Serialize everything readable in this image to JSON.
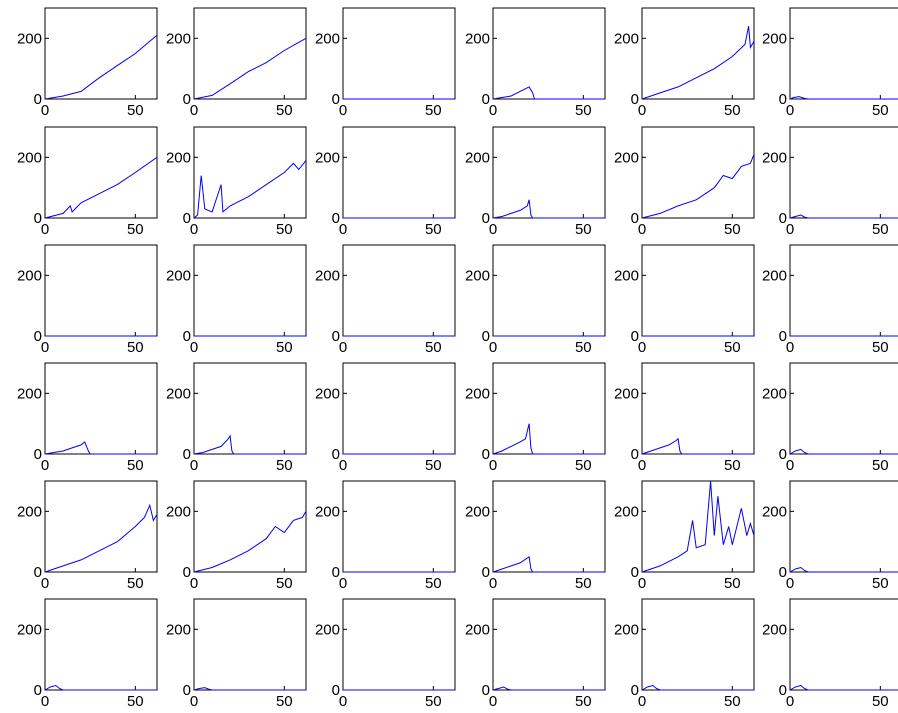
{
  "line_color": "#0000ff",
  "axes_color": "#000000",
  "chart_data": {
    "type": "line",
    "grid": false,
    "rows": 6,
    "cols": 6,
    "xlim": [
      0,
      62
    ],
    "ylim": [
      0,
      300
    ],
    "x_ticks": [
      0,
      50
    ],
    "y_ticks": [
      0,
      200
    ],
    "x_tick_labels": [
      "0",
      "50"
    ],
    "y_tick_labels": [
      "0",
      "200"
    ],
    "panels": [
      {
        "trend": "linear",
        "points": [
          [
            0,
            0
          ],
          [
            10,
            10
          ],
          [
            20,
            25
          ],
          [
            30,
            70
          ],
          [
            40,
            110
          ],
          [
            50,
            150
          ],
          [
            60,
            200
          ],
          [
            62,
            210
          ]
        ]
      },
      {
        "trend": "linear",
        "points": [
          [
            0,
            0
          ],
          [
            10,
            12
          ],
          [
            20,
            50
          ],
          [
            30,
            90
          ],
          [
            40,
            120
          ],
          [
            50,
            160
          ],
          [
            62,
            200
          ]
        ]
      },
      {
        "trend": "zero",
        "points": []
      },
      {
        "trend": "bump",
        "points": [
          [
            0,
            0
          ],
          [
            5,
            5
          ],
          [
            10,
            10
          ],
          [
            15,
            25
          ],
          [
            20,
            40
          ],
          [
            22,
            20
          ],
          [
            23,
            0
          ]
        ]
      },
      {
        "trend": "linear",
        "points": [
          [
            0,
            0
          ],
          [
            10,
            20
          ],
          [
            20,
            40
          ],
          [
            30,
            70
          ],
          [
            40,
            100
          ],
          [
            50,
            140
          ],
          [
            57,
            180
          ],
          [
            59,
            240
          ],
          [
            60,
            170
          ],
          [
            62,
            190
          ]
        ]
      },
      {
        "trend": "small",
        "points": [
          [
            0,
            0
          ],
          [
            2,
            5
          ],
          [
            5,
            8
          ],
          [
            8,
            2
          ],
          [
            10,
            0
          ]
        ]
      },
      {
        "trend": "linear",
        "points": [
          [
            0,
            0
          ],
          [
            10,
            15
          ],
          [
            14,
            40
          ],
          [
            15,
            20
          ],
          [
            20,
            50
          ],
          [
            30,
            80
          ],
          [
            40,
            110
          ],
          [
            50,
            150
          ],
          [
            62,
            200
          ]
        ]
      },
      {
        "trend": "spiky",
        "points": [
          [
            0,
            0
          ],
          [
            2,
            10
          ],
          [
            4,
            140
          ],
          [
            6,
            30
          ],
          [
            10,
            20
          ],
          [
            15,
            110
          ],
          [
            16,
            20
          ],
          [
            20,
            40
          ],
          [
            30,
            70
          ],
          [
            40,
            110
          ],
          [
            50,
            150
          ],
          [
            55,
            180
          ],
          [
            58,
            160
          ],
          [
            62,
            190
          ]
        ]
      },
      {
        "trend": "zero",
        "points": []
      },
      {
        "trend": "bump",
        "points": [
          [
            0,
            0
          ],
          [
            5,
            5
          ],
          [
            10,
            15
          ],
          [
            15,
            25
          ],
          [
            19,
            40
          ],
          [
            20,
            60
          ],
          [
            21,
            10
          ],
          [
            22,
            0
          ]
        ]
      },
      {
        "trend": "linear",
        "points": [
          [
            0,
            0
          ],
          [
            10,
            15
          ],
          [
            20,
            40
          ],
          [
            30,
            60
          ],
          [
            40,
            100
          ],
          [
            45,
            140
          ],
          [
            50,
            130
          ],
          [
            55,
            170
          ],
          [
            60,
            180
          ],
          [
            62,
            210
          ]
        ]
      },
      {
        "trend": "small",
        "points": [
          [
            0,
            0
          ],
          [
            3,
            5
          ],
          [
            6,
            10
          ],
          [
            8,
            3
          ],
          [
            10,
            0
          ]
        ]
      },
      {
        "trend": "zero",
        "points": []
      },
      {
        "trend": "zero",
        "points": []
      },
      {
        "trend": "zero",
        "points": []
      },
      {
        "trend": "zero",
        "points": []
      },
      {
        "trend": "zero",
        "points": []
      },
      {
        "trend": "zero",
        "points": []
      },
      {
        "trend": "bump",
        "points": [
          [
            0,
            0
          ],
          [
            5,
            5
          ],
          [
            10,
            10
          ],
          [
            15,
            20
          ],
          [
            20,
            30
          ],
          [
            22,
            40
          ],
          [
            24,
            10
          ],
          [
            25,
            0
          ]
        ]
      },
      {
        "trend": "bump",
        "points": [
          [
            0,
            0
          ],
          [
            5,
            5
          ],
          [
            10,
            15
          ],
          [
            15,
            25
          ],
          [
            19,
            50
          ],
          [
            20,
            60
          ],
          [
            21,
            10
          ],
          [
            22,
            0
          ]
        ]
      },
      {
        "trend": "zero",
        "points": []
      },
      {
        "trend": "bump",
        "points": [
          [
            0,
            0
          ],
          [
            5,
            10
          ],
          [
            10,
            25
          ],
          [
            15,
            40
          ],
          [
            18,
            50
          ],
          [
            20,
            100
          ],
          [
            21,
            20
          ],
          [
            22,
            0
          ]
        ]
      },
      {
        "trend": "bump",
        "points": [
          [
            0,
            0
          ],
          [
            5,
            10
          ],
          [
            10,
            20
          ],
          [
            15,
            30
          ],
          [
            19,
            45
          ],
          [
            20,
            50
          ],
          [
            21,
            10
          ],
          [
            22,
            0
          ]
        ]
      },
      {
        "trend": "small",
        "points": [
          [
            0,
            0
          ],
          [
            3,
            10
          ],
          [
            6,
            15
          ],
          [
            8,
            5
          ],
          [
            10,
            0
          ]
        ]
      },
      {
        "trend": "linear",
        "points": [
          [
            0,
            0
          ],
          [
            10,
            20
          ],
          [
            20,
            40
          ],
          [
            30,
            70
          ],
          [
            40,
            100
          ],
          [
            50,
            150
          ],
          [
            55,
            180
          ],
          [
            58,
            220
          ],
          [
            60,
            170
          ],
          [
            62,
            190
          ]
        ]
      },
      {
        "trend": "linear",
        "points": [
          [
            0,
            0
          ],
          [
            10,
            15
          ],
          [
            20,
            40
          ],
          [
            30,
            70
          ],
          [
            40,
            110
          ],
          [
            45,
            150
          ],
          [
            50,
            130
          ],
          [
            55,
            170
          ],
          [
            60,
            180
          ],
          [
            62,
            200
          ]
        ]
      },
      {
        "trend": "zero",
        "points": []
      },
      {
        "trend": "bump",
        "points": [
          [
            0,
            0
          ],
          [
            5,
            10
          ],
          [
            10,
            20
          ],
          [
            15,
            30
          ],
          [
            20,
            50
          ],
          [
            21,
            10
          ],
          [
            22,
            0
          ]
        ]
      },
      {
        "trend": "spiky",
        "points": [
          [
            0,
            0
          ],
          [
            10,
            20
          ],
          [
            20,
            50
          ],
          [
            25,
            70
          ],
          [
            28,
            170
          ],
          [
            30,
            80
          ],
          [
            35,
            90
          ],
          [
            38,
            300
          ],
          [
            40,
            120
          ],
          [
            42,
            250
          ],
          [
            45,
            90
          ],
          [
            48,
            150
          ],
          [
            50,
            90
          ],
          [
            55,
            210
          ],
          [
            58,
            120
          ],
          [
            60,
            160
          ],
          [
            62,
            120
          ]
        ]
      },
      {
        "trend": "small",
        "points": [
          [
            0,
            0
          ],
          [
            3,
            10
          ],
          [
            6,
            15
          ],
          [
            8,
            5
          ],
          [
            10,
            0
          ]
        ]
      },
      {
        "trend": "small",
        "points": [
          [
            0,
            0
          ],
          [
            3,
            10
          ],
          [
            6,
            15
          ],
          [
            8,
            5
          ],
          [
            10,
            0
          ]
        ]
      },
      {
        "trend": "small",
        "points": [
          [
            0,
            0
          ],
          [
            3,
            5
          ],
          [
            6,
            8
          ],
          [
            8,
            3
          ],
          [
            10,
            0
          ]
        ]
      },
      {
        "trend": "zero",
        "points": []
      },
      {
        "trend": "small",
        "points": [
          [
            0,
            0
          ],
          [
            3,
            5
          ],
          [
            6,
            10
          ],
          [
            8,
            3
          ],
          [
            10,
            0
          ]
        ]
      },
      {
        "trend": "small",
        "points": [
          [
            0,
            0
          ],
          [
            3,
            10
          ],
          [
            6,
            15
          ],
          [
            8,
            5
          ],
          [
            10,
            0
          ]
        ]
      },
      {
        "trend": "small",
        "points": [
          [
            0,
            0
          ],
          [
            3,
            10
          ],
          [
            6,
            15
          ],
          [
            8,
            5
          ],
          [
            10,
            0
          ]
        ]
      }
    ]
  }
}
